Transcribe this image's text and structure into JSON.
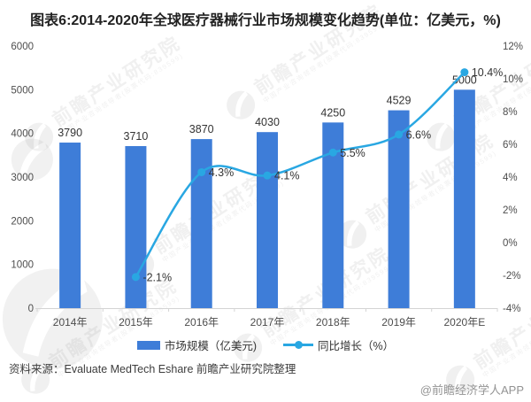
{
  "title": "图表6:2014-2020年全球医疗器械行业市场规模变化趋势(单位：亿美元，%)",
  "chart_data": {
    "type": "bar",
    "subtype": "bar-line-combo",
    "categories": [
      "2014年",
      "2015年",
      "2016年",
      "2017年",
      "2018年",
      "2019年",
      "2020年E"
    ],
    "series": [
      {
        "name": "市场规模（亿美元)",
        "chart": "bar",
        "axis": "left",
        "color": "#3E7DD8",
        "values": [
          3790,
          3710,
          3870,
          4030,
          4250,
          4529,
          5000
        ],
        "labels": [
          "3790",
          "3710",
          "3870",
          "4030",
          "4250",
          "4529",
          "5000"
        ]
      },
      {
        "name": "同比增长（%）",
        "chart": "line",
        "axis": "right",
        "color": "#29A7E2",
        "values": [
          null,
          -2.1,
          4.3,
          4.1,
          5.5,
          6.6,
          10.4
        ],
        "labels": [
          null,
          "-2.1%",
          "4.3%",
          "4.1%",
          "5.5%",
          "6.6%",
          "10.4%"
        ]
      }
    ],
    "left_axis": {
      "min": 0,
      "max": 6000,
      "step": 1000,
      "suffix": ""
    },
    "right_axis": {
      "min": -4,
      "max": 12,
      "step": 2,
      "suffix": "%"
    },
    "grid": false,
    "legend_position": "bottom"
  },
  "source": "资料来源：Evaluate MedTech Eshare 前瞻产业研究院整理",
  "credit": "@前瞻经济学人APP",
  "watermark": {
    "text": "前瞻产业研究院",
    "subtext": "中国产业咨询领导者(股票代码:839599)"
  },
  "colors": {
    "bar": "#3E7DD8",
    "line": "#29A7E2",
    "axis_line": "#d4d4d4",
    "axis_text": "#4d4d4d",
    "value_text": "#333333"
  }
}
